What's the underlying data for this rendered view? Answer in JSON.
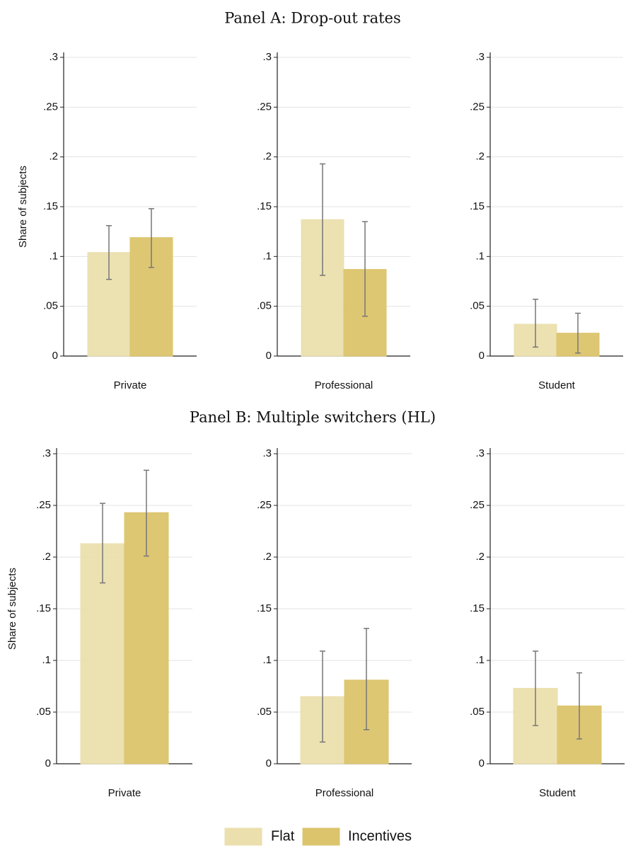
{
  "chart_data": [
    {
      "type": "bar",
      "title": "Panel A: Drop-out rates",
      "ylabel": "Share of subjects",
      "categories": [
        "Private",
        "Professional",
        "Student"
      ],
      "series": [
        {
          "name": "Flat",
          "color": "#ebdfad",
          "values": [
            0.104,
            0.137,
            0.032
          ],
          "ci": [
            [
              0.077,
              0.131
            ],
            [
              0.081,
              0.193
            ],
            [
              0.009,
              0.057
            ]
          ]
        },
        {
          "name": "Incentives",
          "color": "#dcc46c",
          "values": [
            0.119,
            0.087,
            0.023
          ],
          "ci": [
            [
              0.089,
              0.148
            ],
            [
              0.04,
              0.135
            ],
            [
              0.003,
              0.043
            ]
          ]
        }
      ],
      "ylim": [
        0,
        0.3
      ],
      "yticks": [
        0,
        {
          "value": 0.05,
          "label": ".05"
        },
        {
          "value": 0.1,
          "label": ".1"
        },
        {
          "value": 0.15,
          "label": ".15"
        },
        {
          "value": 0.2,
          "label": ".2"
        },
        {
          "value": 0.25,
          "label": ".25"
        },
        {
          "value": 0.3,
          "label": ".3"
        }
      ],
      "grid": true
    },
    {
      "type": "bar",
      "title": "Panel B: Multiple switchers (HL)",
      "ylabel": "Share of subjects",
      "categories": [
        "Private",
        "Professional",
        "Student"
      ],
      "series": [
        {
          "name": "Flat",
          "color": "#ebdfad",
          "values": [
            0.213,
            0.065,
            0.073
          ],
          "ci": [
            [
              0.175,
              0.252
            ],
            [
              0.021,
              0.109
            ],
            [
              0.037,
              0.109
            ]
          ]
        },
        {
          "name": "Incentives",
          "color": "#dcc46c",
          "values": [
            0.243,
            0.081,
            0.056
          ],
          "ci": [
            [
              0.201,
              0.284
            ],
            [
              0.033,
              0.131
            ],
            [
              0.024,
              0.088
            ]
          ]
        }
      ],
      "ylim": [
        0,
        0.3
      ],
      "yticks": [
        0,
        {
          "value": 0.05,
          "label": ".05"
        },
        {
          "value": 0.1,
          "label": ".1"
        },
        {
          "value": 0.15,
          "label": ".15"
        },
        {
          "value": 0.2,
          "label": ".2"
        },
        {
          "value": 0.25,
          "label": ".25"
        },
        {
          "value": 0.3,
          "label": ".3"
        }
      ],
      "grid": true
    }
  ]
}
